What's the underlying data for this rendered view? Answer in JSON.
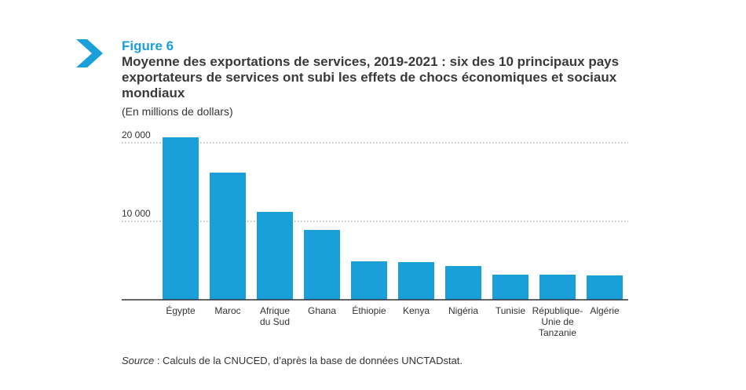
{
  "figure_label": "Figure 6",
  "title": "Moyenne des exportations de services, 2019-2021 : six des 10 principaux pays exportateurs de services ont subi les effets de chocs économiques et sociaux mondiaux",
  "subtitle": "(En millions de dollars)",
  "source_prefix": "Source",
  "source_text": " : Calculs de la CNUCED, d’après la base de données UNCTADstat.",
  "colors": {
    "bar": "#1a9fd9",
    "accent": "#1a9fd9"
  },
  "chart_data": {
    "type": "bar",
    "title": "Moyenne des exportations de services, 2019-2021",
    "xlabel": "",
    "ylabel": "En millions de dollars",
    "ylim": [
      0,
      20000
    ],
    "yticks": [
      {
        "value": 20000,
        "label": "20 000"
      },
      {
        "value": 10000,
        "label": "10 000"
      }
    ],
    "categories": [
      [
        "Égypte"
      ],
      [
        "Maroc"
      ],
      [
        "Afrique",
        "du Sud"
      ],
      [
        "Ghana"
      ],
      [
        "Éthiopie"
      ],
      [
        "Kenya"
      ],
      [
        "Nigéria"
      ],
      [
        "Tunisie"
      ],
      [
        "République-",
        "Unie de",
        "Tanzanie"
      ],
      [
        "Algérie"
      ]
    ],
    "values": [
      20700,
      16200,
      11200,
      8900,
      4900,
      4800,
      4300,
      3200,
      3200,
      3100
    ]
  }
}
